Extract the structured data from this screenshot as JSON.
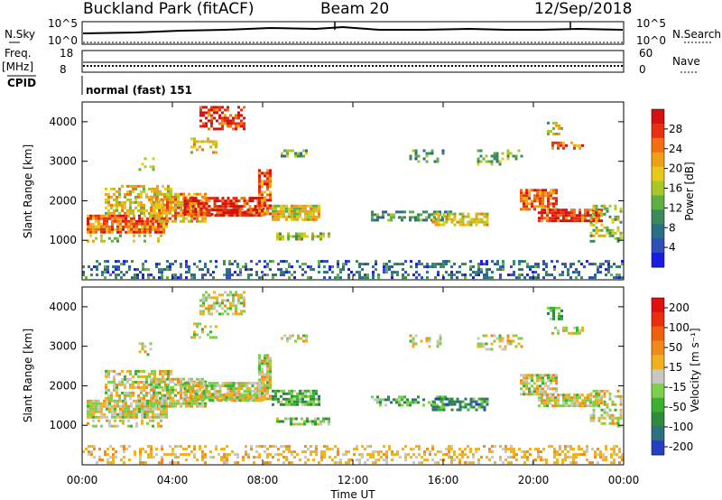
{
  "header": {
    "station": "Buckland Park (fitACF)",
    "beam": "Beam 20",
    "date": "12/Sep/2018"
  },
  "top_panels": {
    "nsky_label": "N.Sky",
    "nsky_ticks": [
      "10^5",
      "10^0"
    ],
    "nsearch_label": "N.Search",
    "nsearch_ticks": [
      "10^5",
      "10^0"
    ],
    "freq_label": "Freq.",
    "freq_unit": "[MHz]",
    "freq_ticks": [
      "18",
      "8"
    ],
    "nave_label": "Nave",
    "nave_ticks": [
      "60",
      "0"
    ],
    "cpid_label": "CPID",
    "cpid_value": "normal (fast) 151"
  },
  "chart_data": [
    {
      "type": "heatmap",
      "name": "power",
      "ylabel": "Slant Range [km]",
      "yticks": [
        "1000",
        "2000",
        "3000",
        "4000"
      ],
      "ylim": [
        0,
        4500
      ],
      "xlim_hours": [
        0,
        24
      ],
      "colorbar_label": "Power [dB]",
      "colorbar_ticks": [
        "4",
        "8",
        "12",
        "16",
        "20",
        "24",
        "28"
      ],
      "colorbar_range": [
        0,
        32
      ],
      "colors": [
        "#1c1ce0",
        "#2e4fb8",
        "#2a6f84",
        "#3c8a5a",
        "#5fb040",
        "#a8c828",
        "#e8c818",
        "#f0a018",
        "#f07010",
        "#e83010",
        "#d41010"
      ]
    },
    {
      "type": "heatmap",
      "name": "velocity",
      "ylabel": "Slant Range [km]",
      "yticks": [
        "1000",
        "2000",
        "3000",
        "4000"
      ],
      "ylim": [
        0,
        4500
      ],
      "xlim_hours": [
        0,
        24
      ],
      "xticks": [
        "00:00",
        "04:00",
        "08:00",
        "12:00",
        "16:00",
        "20:00",
        "00:00"
      ],
      "xlabel": "Time UT",
      "colorbar_label": "Velocity [m s⁻¹]",
      "colorbar_ticks": [
        "200",
        "100",
        "50",
        "15",
        "-15",
        "-50",
        "-100",
        "-200"
      ],
      "colors": [
        "#2440c0",
        "#2e6f80",
        "#2f8a3c",
        "#3cb030",
        "#7cd04a",
        "#c8c8c0",
        "#f0b020",
        "#f08a18",
        "#f06010",
        "#e83010",
        "#e01010"
      ]
    }
  ]
}
